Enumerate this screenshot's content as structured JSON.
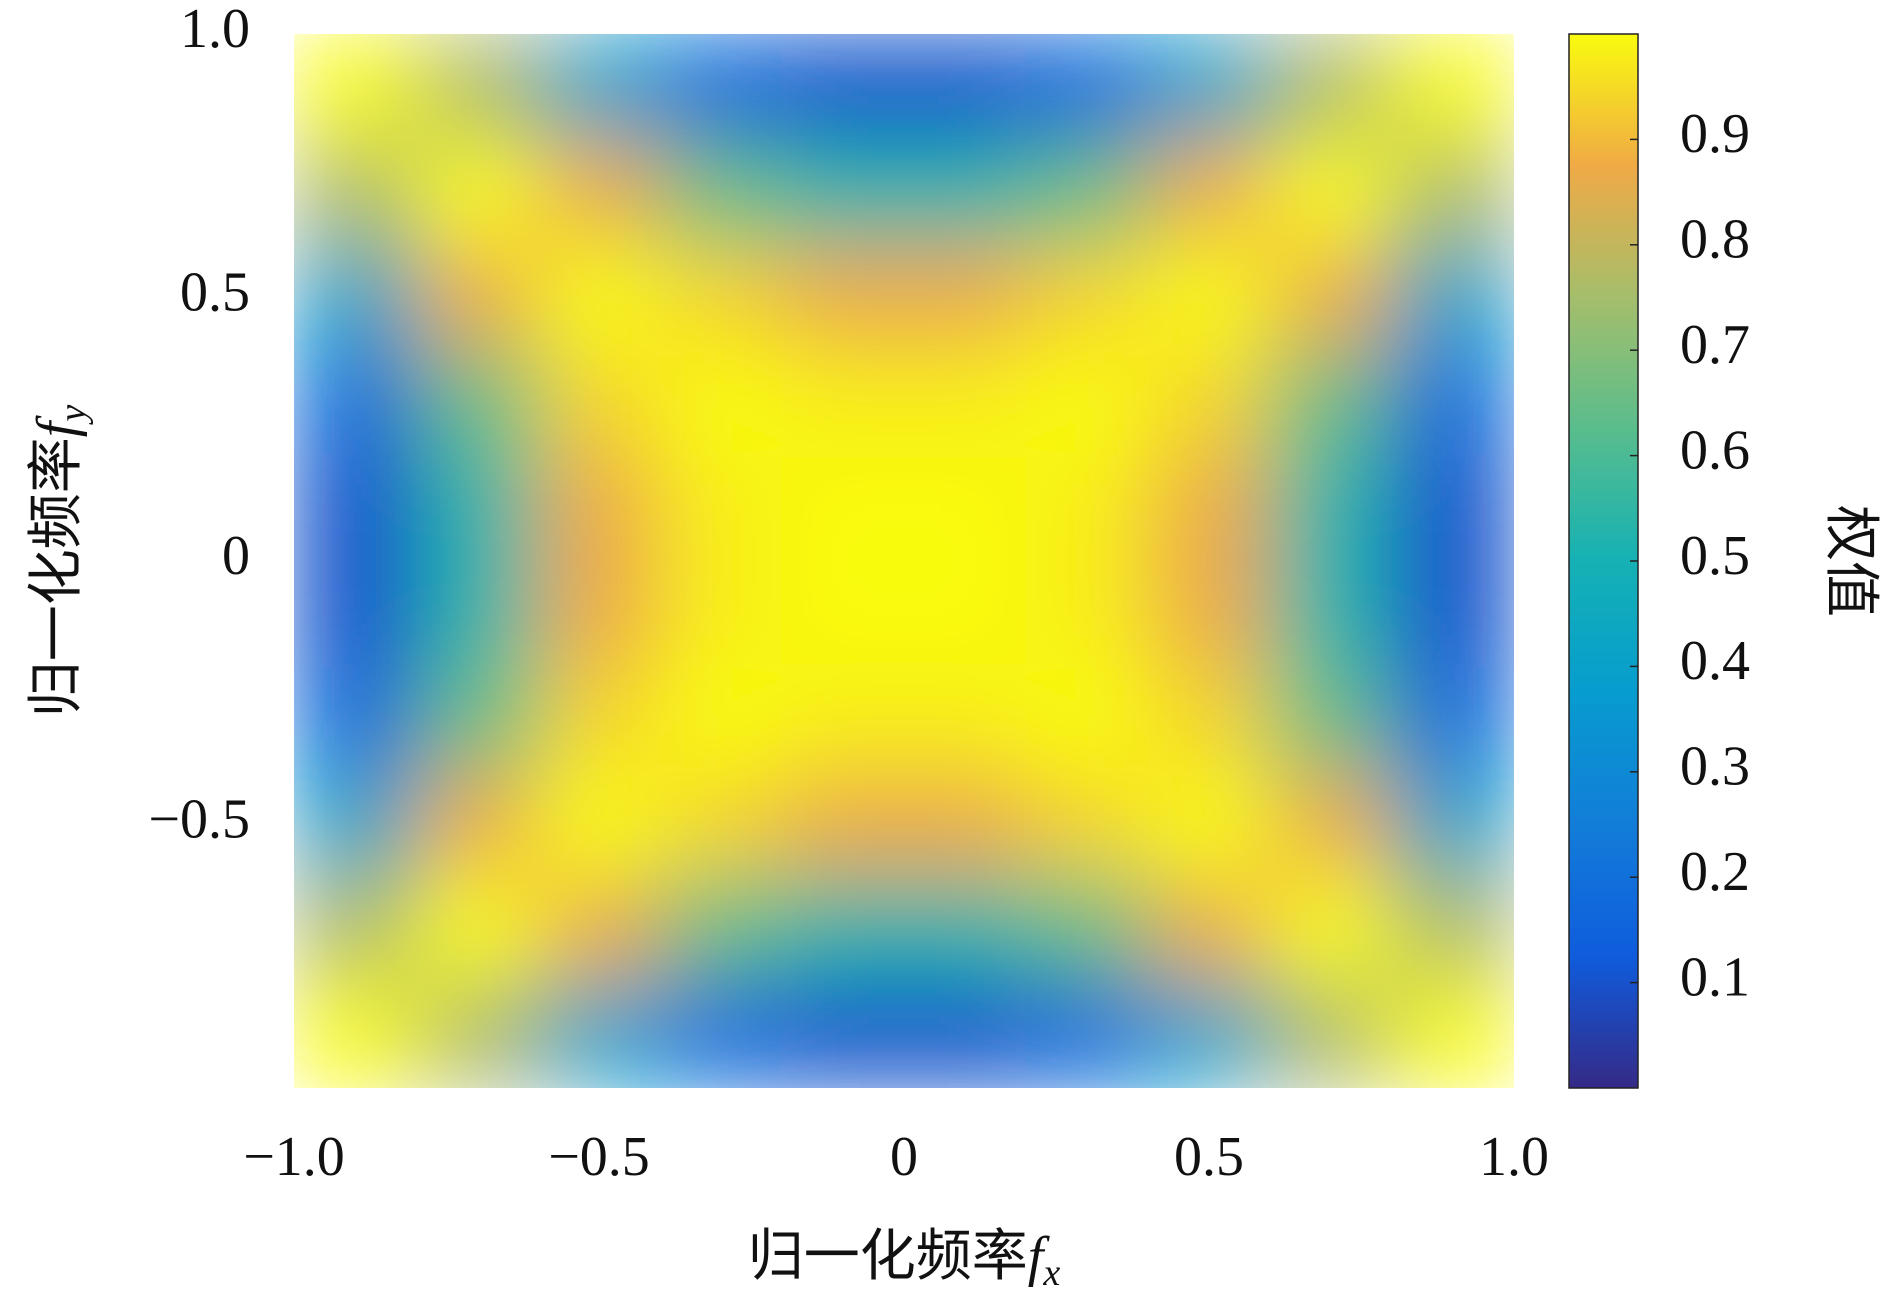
{
  "chart_data": {
    "type": "heatmap",
    "x_label": "归一化频率fx",
    "y_label": "归一化频率fy",
    "colorbar_label": "权值",
    "colormap": "parula",
    "x": [
      -0.9,
      -0.7,
      -0.5,
      -0.3,
      -0.1,
      0.1,
      0.3,
      0.5,
      0.7,
      0.9
    ],
    "y": [
      0.9,
      0.7,
      0.5,
      0.3,
      0.1,
      -0.1,
      -0.3,
      -0.5,
      -0.7,
      -0.9
    ],
    "values": [
      [
        1,
        0.77,
        0.41,
        0.18,
        0.1,
        0.1,
        0.18,
        0.41,
        0.77,
        1
      ],
      [
        0.77,
        1,
        0.87,
        0.65,
        0.53,
        0.53,
        0.65,
        0.87,
        1,
        0.77
      ],
      [
        0.41,
        0.87,
        1,
        0.94,
        0.87,
        0.87,
        0.94,
        1,
        0.87,
        0.41
      ],
      [
        0.18,
        0.65,
        0.94,
        1,
        0.98,
        0.98,
        1,
        0.94,
        0.65,
        0.18
      ],
      [
        0.1,
        0.53,
        0.87,
        0.98,
        1,
        1,
        0.98,
        0.87,
        0.53,
        0.1
      ],
      [
        0.1,
        0.53,
        0.87,
        0.98,
        1,
        1,
        0.98,
        0.87,
        0.53,
        0.1
      ],
      [
        0.18,
        0.65,
        0.94,
        1,
        0.98,
        0.98,
        1,
        0.94,
        0.65,
        0.18
      ],
      [
        0.41,
        0.87,
        1,
        0.94,
        0.87,
        0.87,
        0.94,
        1,
        0.87,
        0.41
      ],
      [
        0.77,
        1,
        0.87,
        0.65,
        0.53,
        0.53,
        0.65,
        0.87,
        1,
        0.77
      ],
      [
        1,
        0.77,
        0.41,
        0.18,
        0.1,
        0.1,
        0.18,
        0.41,
        0.77,
        1
      ]
    ],
    "xlim": [
      -1,
      1
    ],
    "ylim": [
      -1,
      1
    ],
    "xticks": [
      {
        "value": -1,
        "label": "−1.0"
      },
      {
        "value": -0.5,
        "label": "−0.5"
      },
      0,
      0.5,
      {
        "value": 1,
        "label": "1.0"
      }
    ],
    "yticks": [
      {
        "value": 1,
        "label": "1.0"
      },
      0.5,
      0,
      {
        "value": -0.5,
        "label": "−0.5"
      }
    ],
    "clim": [
      0,
      1
    ],
    "cticks": [
      0.1,
      0.2,
      0.3,
      0.4,
      0.5,
      0.6,
      0.7,
      0.8,
      0.9
    ]
  }
}
